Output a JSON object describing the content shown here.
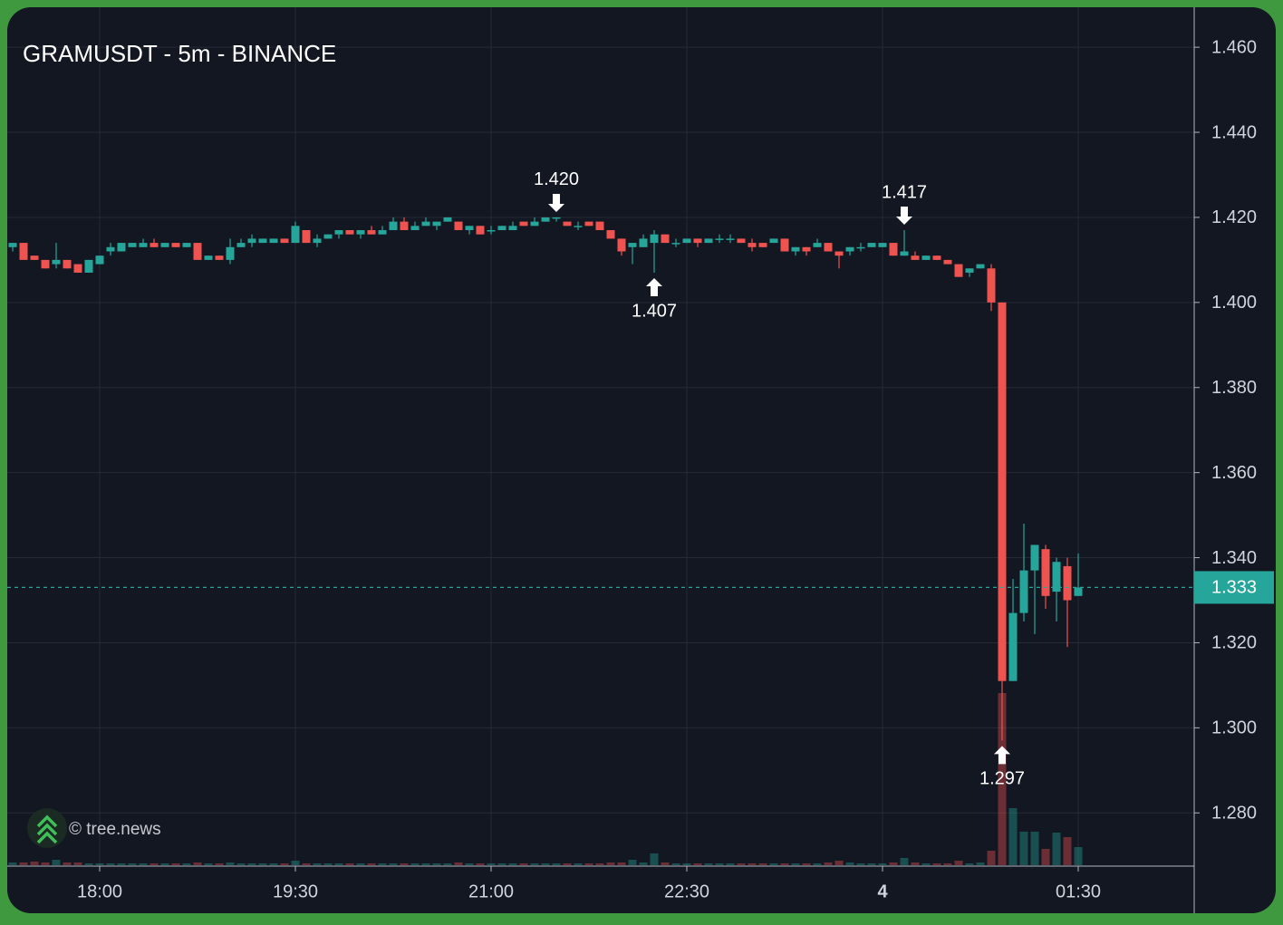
{
  "chart_data": {
    "type": "candlestick",
    "title": "GRAMUSDT - 5m - BINANCE",
    "watermark": "© tree.news",
    "x": [
      "17:20",
      "17:25",
      "17:30",
      "17:35",
      "17:40",
      "17:45",
      "17:50",
      "17:55",
      "18:00",
      "18:05",
      "18:10",
      "18:15",
      "18:20",
      "18:25",
      "18:30",
      "18:35",
      "18:40",
      "18:45",
      "18:50",
      "18:55",
      "19:00",
      "19:05",
      "19:10",
      "19:15",
      "19:20",
      "19:25",
      "19:30",
      "19:35",
      "19:40",
      "19:45",
      "19:50",
      "19:55",
      "20:00",
      "20:05",
      "20:10",
      "20:15",
      "20:20",
      "20:25",
      "20:30",
      "20:35",
      "20:40",
      "20:45",
      "20:50",
      "20:55",
      "21:00",
      "21:05",
      "21:10",
      "21:15",
      "21:20",
      "21:25",
      "21:30",
      "21:35",
      "21:40",
      "21:45",
      "21:50",
      "21:55",
      "22:00",
      "22:05",
      "22:10",
      "22:15",
      "22:20",
      "22:25",
      "22:30",
      "22:35",
      "22:40",
      "22:45",
      "22:50",
      "22:55",
      "23:00",
      "23:05",
      "23:10",
      "23:15",
      "23:20",
      "23:25",
      "23:30",
      "23:35",
      "23:40",
      "23:45",
      "23:50",
      "23:55",
      "00:00",
      "00:05",
      "00:10",
      "00:15",
      "00:20",
      "00:25",
      "00:30",
      "00:35",
      "00:40",
      "00:45",
      "00:50",
      "00:55",
      "01:00",
      "01:05",
      "01:10",
      "01:15",
      "01:20",
      "01:25",
      "01:30"
    ],
    "open": [
      1.413,
      1.414,
      1.411,
      1.41,
      1.409,
      1.41,
      1.409,
      1.407,
      1.409,
      1.412,
      1.412,
      1.413,
      1.413,
      1.414,
      1.413,
      1.414,
      1.413,
      1.414,
      1.41,
      1.411,
      1.41,
      1.413,
      1.414,
      1.414,
      1.414,
      1.415,
      1.414,
      1.417,
      1.414,
      1.415,
      1.416,
      1.417,
      1.416,
      1.417,
      1.416,
      1.417,
      1.419,
      1.417,
      1.418,
      1.418,
      1.419,
      1.419,
      1.417,
      1.418,
      1.417,
      1.417,
      1.417,
      1.419,
      1.418,
      1.419,
      1.42,
      1.419,
      1.418,
      1.419,
      1.419,
      1.417,
      1.415,
      1.413,
      1.413,
      1.414,
      1.416,
      1.414,
      1.414,
      1.415,
      1.414,
      1.415,
      1.415,
      1.415,
      1.414,
      1.414,
      1.414,
      1.415,
      1.412,
      1.413,
      1.413,
      1.414,
      1.412,
      1.412,
      1.413,
      1.413,
      1.413,
      1.414,
      1.411,
      1.411,
      1.41,
      1.411,
      1.41,
      1.409,
      1.407,
      1.408,
      1.408,
      1.4,
      1.311,
      1.327,
      1.337,
      1.342,
      1.332,
      1.338,
      1.331
    ],
    "high": [
      1.414,
      1.414,
      1.411,
      1.41,
      1.414,
      1.41,
      1.409,
      1.41,
      1.411,
      1.414,
      1.414,
      1.414,
      1.415,
      1.415,
      1.414,
      1.414,
      1.414,
      1.414,
      1.411,
      1.411,
      1.415,
      1.415,
      1.416,
      1.415,
      1.415,
      1.415,
      1.419,
      1.417,
      1.416,
      1.416,
      1.417,
      1.417,
      1.417,
      1.418,
      1.418,
      1.42,
      1.42,
      1.419,
      1.42,
      1.419,
      1.42,
      1.419,
      1.418,
      1.418,
      1.418,
      1.418,
      1.419,
      1.419,
      1.42,
      1.42,
      1.42,
      1.419,
      1.419,
      1.419,
      1.419,
      1.417,
      1.415,
      1.414,
      1.416,
      1.417,
      1.416,
      1.415,
      1.415,
      1.415,
      1.415,
      1.416,
      1.416,
      1.415,
      1.415,
      1.414,
      1.415,
      1.415,
      1.413,
      1.413,
      1.415,
      1.414,
      1.412,
      1.413,
      1.414,
      1.414,
      1.414,
      1.414,
      1.417,
      1.412,
      1.411,
      1.411,
      1.41,
      1.409,
      1.408,
      1.409,
      1.409,
      1.4,
      1.335,
      1.348,
      1.343,
      1.343,
      1.34,
      1.34,
      1.341
    ],
    "low": [
      1.412,
      1.41,
      1.41,
      1.408,
      1.408,
      1.408,
      1.407,
      1.407,
      1.409,
      1.411,
      1.412,
      1.413,
      1.413,
      1.413,
      1.413,
      1.413,
      1.413,
      1.41,
      1.41,
      1.41,
      1.409,
      1.413,
      1.413,
      1.414,
      1.414,
      1.414,
      1.414,
      1.414,
      1.413,
      1.415,
      1.415,
      1.416,
      1.415,
      1.416,
      1.416,
      1.417,
      1.417,
      1.417,
      1.418,
      1.417,
      1.419,
      1.417,
      1.416,
      1.416,
      1.416,
      1.417,
      1.417,
      1.418,
      1.418,
      1.419,
      1.419,
      1.418,
      1.417,
      1.418,
      1.417,
      1.415,
      1.411,
      1.409,
      1.413,
      1.407,
      1.414,
      1.413,
      1.414,
      1.413,
      1.414,
      1.414,
      1.414,
      1.414,
      1.412,
      1.413,
      1.414,
      1.412,
      1.411,
      1.411,
      1.413,
      1.412,
      1.408,
      1.411,
      1.412,
      1.413,
      1.413,
      1.411,
      1.411,
      1.41,
      1.41,
      1.41,
      1.409,
      1.406,
      1.406,
      1.408,
      1.398,
      1.297,
      1.311,
      1.325,
      1.322,
      1.328,
      1.325,
      1.319,
      1.331
    ],
    "close": [
      1.414,
      1.41,
      1.41,
      1.408,
      1.41,
      1.408,
      1.407,
      1.41,
      1.411,
      1.413,
      1.414,
      1.414,
      1.414,
      1.413,
      1.414,
      1.413,
      1.414,
      1.41,
      1.411,
      1.41,
      1.413,
      1.414,
      1.415,
      1.415,
      1.415,
      1.414,
      1.418,
      1.414,
      1.415,
      1.416,
      1.417,
      1.416,
      1.417,
      1.416,
      1.417,
      1.419,
      1.417,
      1.418,
      1.419,
      1.419,
      1.42,
      1.417,
      1.418,
      1.416,
      1.417,
      1.418,
      1.418,
      1.418,
      1.419,
      1.42,
      1.42,
      1.418,
      1.418,
      1.418,
      1.417,
      1.415,
      1.412,
      1.414,
      1.415,
      1.416,
      1.414,
      1.414,
      1.415,
      1.414,
      1.415,
      1.415,
      1.415,
      1.414,
      1.413,
      1.413,
      1.415,
      1.412,
      1.413,
      1.412,
      1.414,
      1.412,
      1.411,
      1.413,
      1.413,
      1.414,
      1.414,
      1.411,
      1.412,
      1.41,
      1.411,
      1.41,
      1.409,
      1.406,
      1.408,
      1.409,
      1.4,
      1.311,
      1.327,
      1.337,
      1.343,
      1.331,
      1.339,
      1.33,
      1.333
    ],
    "volume": [
      3,
      3,
      4,
      3,
      6,
      3,
      3,
      2,
      2,
      2,
      2,
      2,
      2,
      2,
      2,
      2,
      2,
      3,
      2,
      2,
      3,
      2,
      2,
      2,
      2,
      2,
      5,
      2,
      2,
      2,
      2,
      2,
      2,
      2,
      2,
      2,
      2,
      2,
      2,
      2,
      2,
      3,
      2,
      2,
      2,
      2,
      2,
      2,
      2,
      2,
      2,
      2,
      2,
      2,
      2,
      3,
      3,
      6,
      3,
      13,
      3,
      2,
      2,
      2,
      2,
      2,
      2,
      2,
      2,
      2,
      2,
      2,
      2,
      2,
      2,
      3,
      5,
      3,
      2,
      2,
      2,
      3,
      8,
      3,
      2,
      2,
      2,
      5,
      2,
      3,
      16,
      190,
      63,
      37,
      37,
      18,
      36,
      31,
      20
    ],
    "up_color": "#26a69a",
    "down_color": "#ef5350",
    "ylim": [
      1.2677,
      1.4694
    ],
    "yticks": [
      {
        "value": 1.28,
        "label": "1.280"
      },
      {
        "value": 1.3,
        "label": "1.300"
      },
      {
        "value": 1.32,
        "label": "1.320"
      },
      {
        "value": 1.34,
        "label": "1.340"
      },
      {
        "value": 1.36,
        "label": "1.360"
      },
      {
        "value": 1.38,
        "label": "1.380"
      },
      {
        "value": 1.4,
        "label": "1.400"
      },
      {
        "value": 1.42,
        "label": "1.420"
      },
      {
        "value": 1.44,
        "label": "1.440"
      },
      {
        "value": 1.46,
        "label": "1.460"
      }
    ],
    "xticks": [
      "18:00",
      "19:30",
      "21:00",
      "22:30",
      {
        "value": "00:00",
        "label": "4"
      },
      "01:30"
    ],
    "grid": true,
    "last_price": {
      "value": 1.333,
      "label": "1.333"
    },
    "annotations": [
      {
        "x": "21:30",
        "value": 1.42,
        "label": "1.420",
        "side": "high"
      },
      {
        "x": "22:15",
        "value": 1.407,
        "label": "1.407",
        "side": "low"
      },
      {
        "x": "00:10",
        "value": 1.417,
        "label": "1.417",
        "side": "high"
      },
      {
        "x": "00:55",
        "value": 1.297,
        "label": "1.297",
        "side": "low"
      }
    ]
  }
}
